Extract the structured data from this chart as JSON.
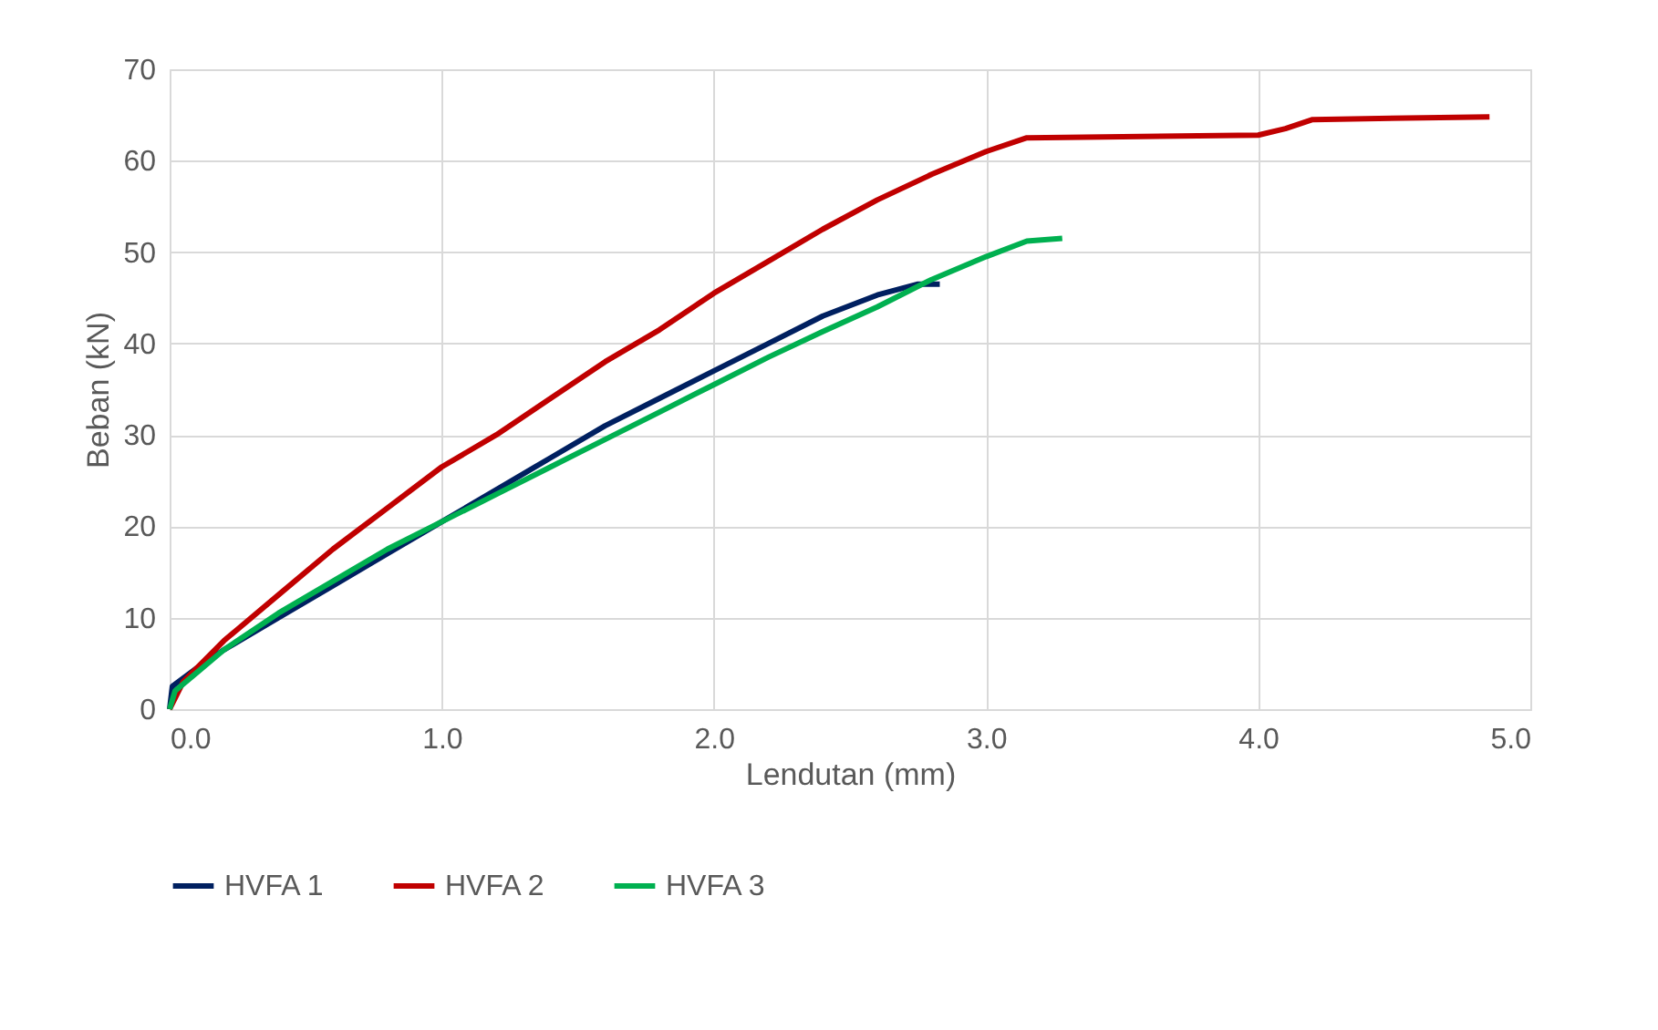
{
  "chart_data": {
    "type": "line",
    "xlabel": "Lendutan (mm)",
    "ylabel": "Beban (kN)",
    "xlim": [
      0,
      5
    ],
    "xticks": [
      {
        "value": 0,
        "label": "0.0"
      },
      {
        "value": 1,
        "label": "1.0"
      },
      {
        "value": 2,
        "label": "2.0"
      },
      {
        "value": 3,
        "label": "3.0"
      },
      {
        "value": 4,
        "label": "4.0"
      },
      {
        "value": 5,
        "label": "5.0"
      }
    ],
    "ylim": [
      0,
      70
    ],
    "yticks": [
      0,
      10,
      20,
      30,
      40,
      50,
      60,
      70
    ],
    "grid": true,
    "legend": "bottom",
    "marker": "none",
    "line_style": "solid",
    "series": [
      {
        "name": "HVFA 1",
        "color": "#002060",
        "x": [
          0,
          0.01,
          0.1,
          0.2,
          0.4,
          0.6,
          0.8,
          1.0,
          1.2,
          1.4,
          1.6,
          1.8,
          2.0,
          2.2,
          2.4,
          2.6,
          2.75,
          2.83
        ],
        "values": [
          0,
          2.5,
          4.5,
          6.5,
          10,
          13.5,
          17,
          20.5,
          24,
          27.5,
          31,
          34,
          37,
          40,
          43,
          45.3,
          46.5,
          46.5
        ]
      },
      {
        "name": "HVFA 2",
        "color": "#c00000",
        "x": [
          0,
          0.05,
          0.2,
          0.4,
          0.6,
          0.8,
          1.0,
          1.2,
          1.4,
          1.6,
          1.8,
          2.0,
          2.2,
          2.4,
          2.6,
          2.8,
          3.0,
          3.15,
          4.0,
          4.1,
          4.2,
          4.85
        ],
        "values": [
          0,
          3,
          7.5,
          12.5,
          17.5,
          22,
          26.5,
          30,
          34,
          38,
          41.5,
          45.5,
          49,
          52.5,
          55.7,
          58.5,
          61,
          62.5,
          62.8,
          63.5,
          64.5,
          64.8
        ]
      },
      {
        "name": "HVFA 3",
        "color": "#00b050",
        "x": [
          0,
          0.02,
          0.1,
          0.2,
          0.4,
          0.6,
          0.8,
          1.0,
          1.2,
          1.4,
          1.6,
          1.8,
          2.0,
          2.2,
          2.4,
          2.6,
          2.8,
          3.0,
          3.15,
          3.28
        ],
        "values": [
          0,
          2,
          4,
          6.5,
          10.5,
          14,
          17.5,
          20.5,
          23.5,
          26.5,
          29.5,
          32.5,
          35.5,
          38.5,
          41.3,
          44,
          47,
          49.5,
          51.2,
          51.5
        ]
      }
    ]
  }
}
